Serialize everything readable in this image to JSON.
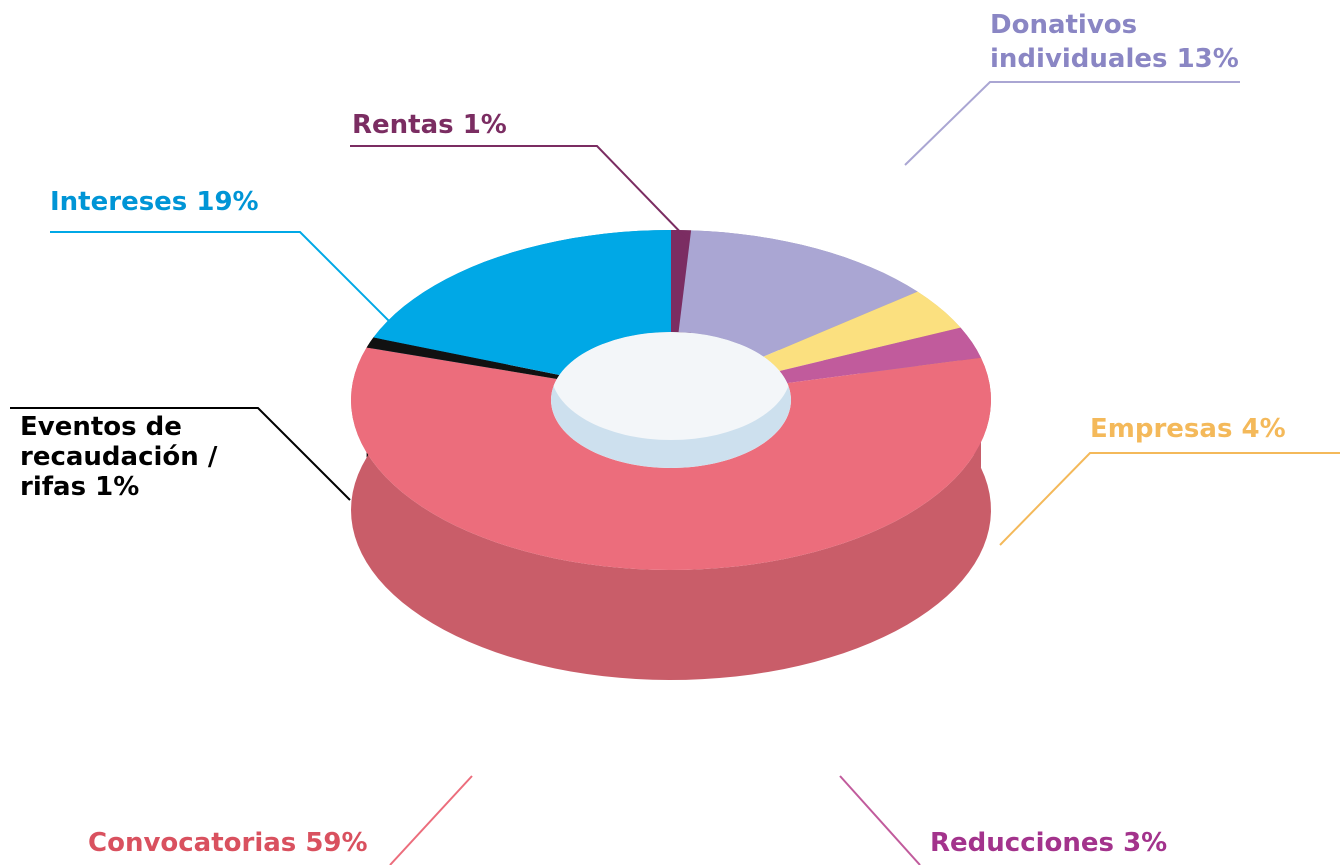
{
  "chart_data": {
    "type": "pie",
    "categories": [
      "Rentas",
      "Donativos individuales",
      "Empresas",
      "Reducciones",
      "Convocatorias",
      "Eventos de recaudación / rifas",
      "Intereses"
    ],
    "values": [
      1,
      13,
      4,
      3,
      59,
      1,
      19
    ],
    "value_labels": [
      "1%",
      "13%",
      "4%",
      "3%",
      "59%",
      "1%",
      "19%"
    ],
    "colors": [
      "#7b2d62",
      "#aaa6d3",
      "#fbe07f",
      "#c15b9c",
      "#ec6d7c",
      "#111111",
      "#00a8e6"
    ],
    "label_colors": [
      "#7b2d62",
      "#8a86c4",
      "#f4b95a",
      "#a3338c",
      "#d9515f",
      "#000000",
      "#0095d6"
    ]
  }
}
